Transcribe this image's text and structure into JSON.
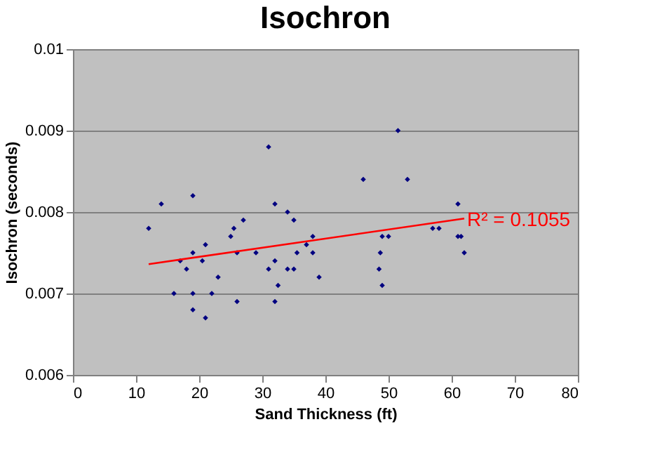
{
  "chart_data": {
    "type": "scatter",
    "title": "Isochron",
    "xlabel": "Sand Thickness (ft)",
    "ylabel": "Isochron (seconds)",
    "xlim": [
      0,
      80
    ],
    "xticks": [
      0,
      10,
      20,
      30,
      40,
      50,
      60,
      70,
      80
    ],
    "ylim": [
      0.006,
      0.01
    ],
    "yticks": [
      0.006,
      0.007,
      0.008,
      0.009,
      0.01
    ],
    "grid": "y",
    "legend": false,
    "marker": "diamond",
    "series": [
      {
        "color": "#000080",
        "x": [
          12,
          14,
          16,
          17,
          18,
          19,
          19,
          19,
          19,
          20.5,
          21,
          21,
          22,
          23,
          25,
          25.5,
          26,
          26,
          27,
          29,
          31,
          31,
          32,
          32,
          32,
          32.5,
          34,
          34,
          35,
          35,
          35.5,
          37,
          38,
          38,
          39,
          46,
          48.5,
          48.7,
          49,
          49,
          50,
          51.5,
          53,
          57,
          58,
          61,
          61,
          61.5,
          62
        ],
        "values": [
          0.0078,
          0.0081,
          0.007,
          0.0074,
          0.0073,
          0.0082,
          0.0075,
          0.007,
          0.0068,
          0.0074,
          0.0076,
          0.0067,
          0.007,
          0.0072,
          0.0077,
          0.0078,
          0.0069,
          0.0075,
          0.0079,
          0.0075,
          0.0088,
          0.0073,
          0.0081,
          0.0074,
          0.0069,
          0.0071,
          0.008,
          0.0073,
          0.0073,
          0.0079,
          0.0075,
          0.0076,
          0.0077,
          0.0075,
          0.0072,
          0.0084,
          0.0073,
          0.0075,
          0.0071,
          0.0077,
          0.0077,
          0.009,
          0.0084,
          0.0078,
          0.0078,
          0.0081,
          0.0077,
          0.0077,
          0.0075
        ]
      },
      {
        "type": "line",
        "color": "#ff0000",
        "x": [
          12,
          62
        ],
        "values": [
          0.00736,
          0.00792
        ],
        "line_style": "solid",
        "marker": "none"
      }
    ],
    "annotations": [
      {
        "text": "R² = 0.1055",
        "x": 62,
        "y": 0.0079
      }
    ]
  }
}
